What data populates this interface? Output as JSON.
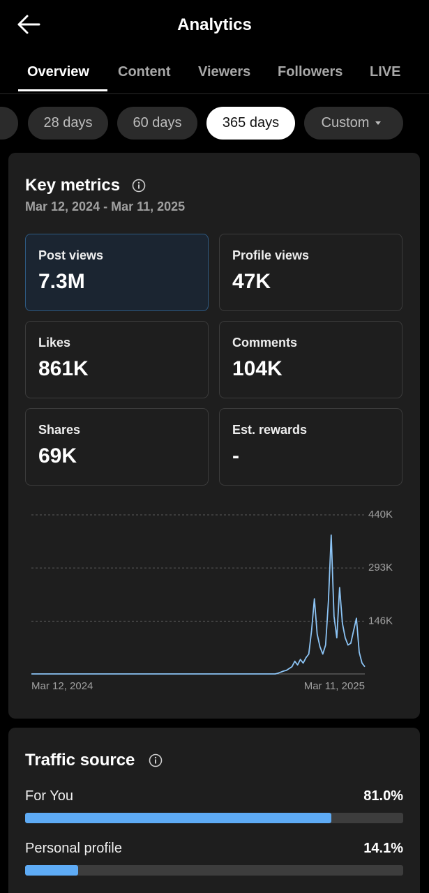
{
  "header": {
    "title": "Analytics"
  },
  "tabs": [
    "Overview",
    "Content",
    "Viewers",
    "Followers",
    "LIVE"
  ],
  "ranges": [
    "28 days",
    "60 days",
    "365 days",
    "Custom"
  ],
  "key_metrics": {
    "title": "Key metrics",
    "date_range": "Mar 12, 2024 - Mar 11, 2025",
    "cards": [
      {
        "label": "Post views",
        "value": "7.3M"
      },
      {
        "label": "Profile views",
        "value": "47K"
      },
      {
        "label": "Likes",
        "value": "861K"
      },
      {
        "label": "Comments",
        "value": "104K"
      },
      {
        "label": "Shares",
        "value": "69K"
      },
      {
        "label": "Est. rewards",
        "value": "-"
      }
    ]
  },
  "chart_data": {
    "type": "line",
    "color": "#8cc4f5",
    "grid": true,
    "ylim": [
      0,
      440000
    ],
    "yticks": [
      {
        "value": 146000,
        "label": "146K"
      },
      {
        "value": 293000,
        "label": "293K"
      },
      {
        "value": 440000,
        "label": "440K"
      }
    ],
    "categories": [
      "Mar 12, 2024",
      null,
      null,
      null,
      null,
      null,
      null,
      null,
      null,
      null,
      null,
      null,
      null,
      null,
      null,
      null,
      null,
      null,
      null,
      null,
      null,
      null,
      null,
      null,
      null,
      null,
      null,
      null,
      null,
      null,
      null,
      null,
      null,
      null,
      null,
      null,
      null,
      null,
      null,
      null,
      null,
      null,
      null,
      null,
      null,
      null,
      null,
      null,
      null,
      null,
      null,
      null,
      null,
      null,
      null,
      null,
      null,
      null,
      null,
      null,
      null,
      null,
      null,
      null,
      null,
      null,
      null,
      null,
      null,
      null,
      null,
      null,
      null,
      null,
      null,
      null,
      null,
      null,
      null,
      null,
      null,
      null,
      null,
      null,
      null,
      null,
      null,
      null,
      null,
      null,
      null,
      null,
      null,
      null,
      null,
      null,
      null,
      null,
      null,
      null,
      null,
      null,
      null,
      null,
      null,
      null,
      null,
      null,
      null,
      null,
      null,
      null,
      null,
      null,
      null,
      null,
      null,
      null,
      null,
      "Mar 11, 2025"
    ],
    "values": [
      0,
      0,
      0,
      0,
      0,
      0,
      0,
      0,
      0,
      0,
      0,
      0,
      0,
      0,
      0,
      0,
      0,
      0,
      0,
      0,
      0,
      0,
      0,
      0,
      0,
      0,
      0,
      0,
      0,
      0,
      0,
      0,
      0,
      0,
      0,
      0,
      0,
      0,
      0,
      0,
      0,
      0,
      0,
      0,
      0,
      0,
      0,
      0,
      0,
      0,
      0,
      0,
      0,
      0,
      0,
      0,
      0,
      0,
      0,
      0,
      0,
      0,
      0,
      0,
      0,
      0,
      0,
      0,
      0,
      0,
      0,
      0,
      0,
      0,
      0,
      0,
      0,
      0,
      0,
      0,
      0,
      0,
      0,
      0,
      0,
      0,
      0,
      0,
      2000,
      5000,
      8000,
      10000,
      15000,
      20000,
      35000,
      25000,
      40000,
      30000,
      45000,
      55000,
      120000,
      208000,
      110000,
      75000,
      55000,
      80000,
      200000,
      384000,
      160000,
      100000,
      239000,
      140000,
      100000,
      80000,
      85000,
      120000,
      154000,
      60000,
      30000,
      20000
    ]
  },
  "traffic_source": {
    "title": "Traffic source",
    "xlim": [
      0,
      100
    ],
    "categories": [
      "For You",
      "Personal profile"
    ],
    "values": [
      81.0,
      14.1
    ],
    "value_labels": [
      "81.0%",
      "14.1%"
    ]
  }
}
